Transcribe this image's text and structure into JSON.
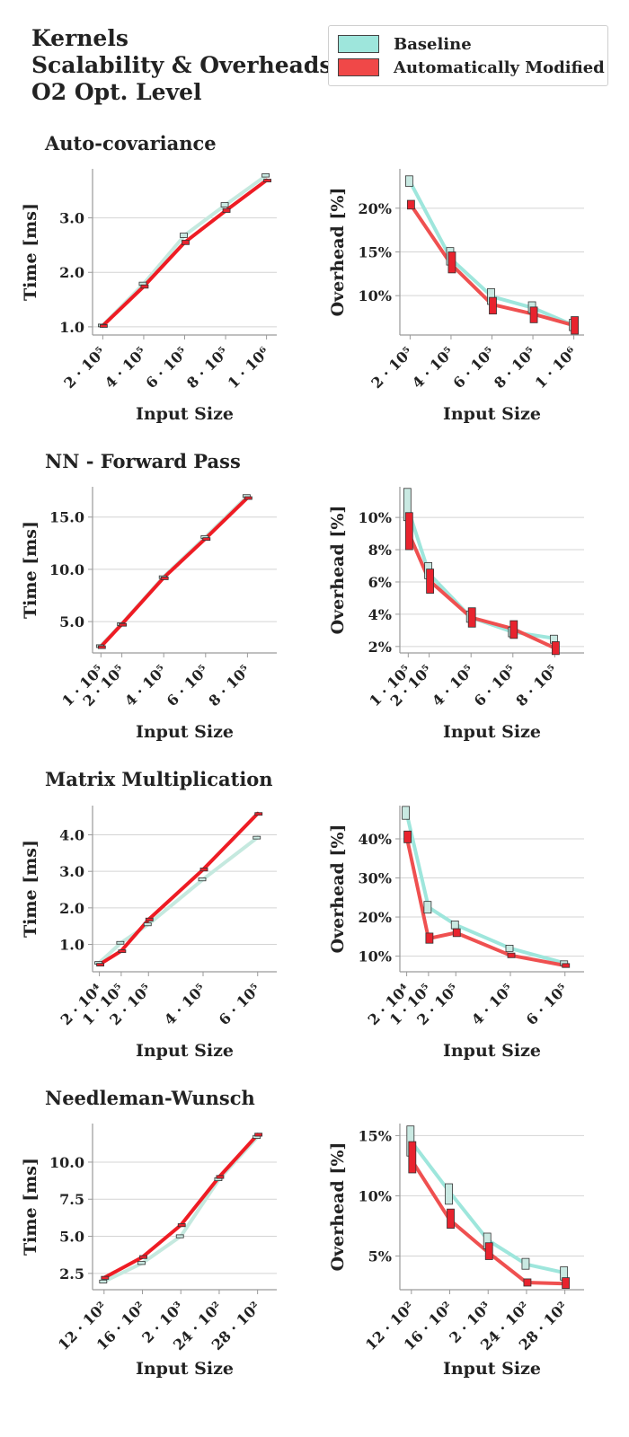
{
  "header": {
    "title": "Kernels\nScalability & Overheads,\nO2 Opt. Level"
  },
  "legend": {
    "placement": "top-right",
    "items": [
      {
        "label": "Baseline",
        "color": "#9ee6dc"
      },
      {
        "label": "Automatically Modified",
        "color": "#f04848"
      }
    ]
  },
  "colors": {
    "baseline_line": "#9ee6dc",
    "baseline_box": "#c9e9e2",
    "modified_line": "#ef5050",
    "modified_box": "#e8232e",
    "modified_time_line": "#ee1c24",
    "time_baseline_line": "#c5e9df",
    "grid": "#d4d4d4",
    "axis": "#9a9a9a"
  },
  "panels": [
    {
      "title": "Auto-covariance"
    },
    {
      "title": "NN - Forward Pass"
    },
    {
      "title": "Matrix Multiplication"
    },
    {
      "title": "Needleman-Wunsch"
    }
  ],
  "chart_data": [
    {
      "type": "line",
      "panel": 0,
      "side": "time",
      "xlabel": "Input Size",
      "ylabel": "Time [ms]",
      "xlim": [
        150000,
        1050000
      ],
      "ylim": [
        0.85,
        3.9
      ],
      "grid": true,
      "xticks": [
        {
          "v": 200000,
          "label": "2 · 10⁵"
        },
        {
          "v": 400000,
          "label": "4 · 10⁵"
        },
        {
          "v": 600000,
          "label": "6 · 10⁵"
        },
        {
          "v": 800000,
          "label": "8 · 10⁵"
        },
        {
          "v": 1000000,
          "label": "1 · 10⁶"
        }
      ],
      "yticks": [
        {
          "v": 1.0,
          "label": "1.0"
        },
        {
          "v": 2.0,
          "label": "2.0"
        },
        {
          "v": 3.0,
          "label": "3.0"
        }
      ],
      "x": [
        200000,
        400000,
        600000,
        800000,
        1000000
      ],
      "series": [
        {
          "name": "Baseline",
          "values": [
            1.03,
            1.79,
            2.68,
            3.24,
            3.78
          ],
          "box": [
            [
              1.01,
              1.05
            ],
            [
              1.76,
              1.82
            ],
            [
              2.64,
              2.72
            ],
            [
              3.2,
              3.28
            ],
            [
              3.75,
              3.81
            ]
          ]
        },
        {
          "name": "Automatically Modified",
          "values": [
            1.02,
            1.74,
            2.55,
            3.13,
            3.69
          ],
          "box": [
            [
              1.0,
              1.04
            ],
            [
              1.71,
              1.77
            ],
            [
              2.51,
              2.59
            ],
            [
              3.1,
              3.17
            ],
            [
              3.67,
              3.71
            ]
          ]
        }
      ]
    },
    {
      "type": "line",
      "panel": 0,
      "side": "overhead",
      "xlabel": "Input Size",
      "ylabel": "Overhead [%]",
      "xlim": [
        150000,
        1050000
      ],
      "ylim": [
        5.5,
        24.5
      ],
      "grid": true,
      "xticks": [
        {
          "v": 200000,
          "label": "2 · 10⁵"
        },
        {
          "v": 400000,
          "label": "4 · 10⁵"
        },
        {
          "v": 600000,
          "label": "6 · 10⁵"
        },
        {
          "v": 800000,
          "label": "8 · 10⁵"
        },
        {
          "v": 1000000,
          "label": "1 · 10⁶"
        }
      ],
      "yticks": [
        {
          "v": 10,
          "label": "10%"
        },
        {
          "v": 15,
          "label": "15%"
        },
        {
          "v": 20,
          "label": "20%"
        }
      ],
      "x": [
        200000,
        400000,
        600000,
        800000,
        1000000
      ],
      "series": [
        {
          "name": "Baseline",
          "values": [
            23.0,
            14.2,
            9.9,
            8.6,
            6.6
          ],
          "box": [
            [
              22.5,
              23.7
            ],
            [
              13.5,
              15.5
            ],
            [
              9.0,
              10.8
            ],
            [
              8.0,
              9.3
            ],
            [
              6.0,
              7.3
            ]
          ]
        },
        {
          "name": "Automatically Modified",
          "values": [
            20.5,
            13.6,
            9.0,
            7.9,
            6.6
          ],
          "box": [
            [
              19.9,
              20.9
            ],
            [
              12.6,
              15.0
            ],
            [
              7.9,
              9.8
            ],
            [
              6.9,
              8.7
            ],
            [
              5.6,
              7.6
            ]
          ]
        }
      ]
    },
    {
      "type": "line",
      "panel": 1,
      "side": "time",
      "xlabel": "Input Size",
      "ylabel": "Time [ms]",
      "xlim": [
        60000,
        940000
      ],
      "ylim": [
        2.0,
        17.9
      ],
      "grid": true,
      "xticks": [
        {
          "v": 100000,
          "label": "1 · 10⁵"
        },
        {
          "v": 200000,
          "label": "2 · 10⁵"
        },
        {
          "v": 400000,
          "label": "4 · 10⁵"
        },
        {
          "v": 600000,
          "label": "6 · 10⁵"
        },
        {
          "v": 800000,
          "label": "8 · 10⁵"
        }
      ],
      "yticks": [
        {
          "v": 5.0,
          "label": "5.0"
        },
        {
          "v": 10.0,
          "label": "10.0"
        },
        {
          "v": 15.0,
          "label": "15.0"
        }
      ],
      "x": [
        100000,
        200000,
        400000,
        600000,
        800000
      ],
      "series": [
        {
          "name": "Baseline",
          "values": [
            2.7,
            4.8,
            9.3,
            13.1,
            17.0
          ],
          "box": [
            [
              2.62,
              2.78
            ],
            [
              4.72,
              4.88
            ],
            [
              9.22,
              9.38
            ],
            [
              13.0,
              13.22
            ],
            [
              16.9,
              17.15
            ]
          ]
        },
        {
          "name": "Automatically Modified",
          "values": [
            2.6,
            4.75,
            9.2,
            12.95,
            16.85
          ],
          "box": [
            [
              2.55,
              2.68
            ],
            [
              4.68,
              4.82
            ],
            [
              9.13,
              9.27
            ],
            [
              12.88,
              13.03
            ],
            [
              16.75,
              16.95
            ]
          ]
        }
      ]
    },
    {
      "type": "line",
      "panel": 1,
      "side": "overhead",
      "xlabel": "Input Size",
      "ylabel": "Overhead [%]",
      "xlim": [
        60000,
        940000
      ],
      "ylim": [
        1.6,
        11.9
      ],
      "grid": true,
      "xticks": [
        {
          "v": 100000,
          "label": "1 · 10⁵"
        },
        {
          "v": 200000,
          "label": "2 · 10⁵"
        },
        {
          "v": 400000,
          "label": "4 · 10⁵"
        },
        {
          "v": 600000,
          "label": "6 · 10⁵"
        },
        {
          "v": 800000,
          "label": "8 · 10⁵"
        }
      ],
      "yticks": [
        {
          "v": 2,
          "label": "2%"
        },
        {
          "v": 4,
          "label": "4%"
        },
        {
          "v": 6,
          "label": "6%"
        },
        {
          "v": 8,
          "label": "8%"
        },
        {
          "v": 10,
          "label": "10%"
        }
      ],
      "x": [
        100000,
        200000,
        400000,
        600000,
        800000
      ],
      "series": [
        {
          "name": "Baseline",
          "values": [
            10.5,
            6.5,
            3.8,
            2.9,
            2.5
          ],
          "box": [
            [
              9.8,
              11.8
            ],
            [
              6.2,
              7.2
            ],
            [
              3.5,
              4.2
            ],
            [
              2.6,
              3.2
            ],
            [
              2.2,
              2.7
            ]
          ]
        },
        {
          "name": "Automatically Modified",
          "values": [
            9.1,
            6.1,
            3.8,
            3.1,
            1.9
          ],
          "box": [
            [
              8.0,
              10.3
            ],
            [
              5.3,
              6.8
            ],
            [
              3.2,
              4.4
            ],
            [
              2.5,
              3.6
            ],
            [
              1.5,
              2.3
            ]
          ]
        }
      ]
    },
    {
      "type": "line",
      "panel": 2,
      "side": "time",
      "xlabel": "Input Size",
      "ylabel": "Time [ms]",
      "xlim": [
        -5000,
        670000
      ],
      "ylim": [
        0.25,
        4.8
      ],
      "grid": true,
      "xticks": [
        {
          "v": 20000,
          "label": "2 · 10⁴"
        },
        {
          "v": 100000,
          "label": "1 · 10⁵"
        },
        {
          "v": 200000,
          "label": "2 · 10⁵"
        },
        {
          "v": 400000,
          "label": "4 · 10⁵"
        },
        {
          "v": 600000,
          "label": "6 · 10⁵"
        }
      ],
      "yticks": [
        {
          "v": 1.0,
          "label": "1.0"
        },
        {
          "v": 2.0,
          "label": "2.0"
        },
        {
          "v": 3.0,
          "label": "3.0"
        },
        {
          "v": 4.0,
          "label": "4.0"
        }
      ],
      "x": [
        20000,
        100000,
        200000,
        400000,
        600000
      ],
      "series": [
        {
          "name": "Baseline",
          "values": [
            0.5,
            1.05,
            1.55,
            2.78,
            3.93
          ],
          "box": [
            [
              0.47,
              0.53
            ],
            [
              1.02,
              1.08
            ],
            [
              1.51,
              1.59
            ],
            [
              2.74,
              2.82
            ],
            [
              3.9,
              3.96
            ]
          ]
        },
        {
          "name": "Automatically Modified",
          "values": [
            0.45,
            0.82,
            1.68,
            3.05,
            4.58
          ],
          "box": [
            [
              0.42,
              0.48
            ],
            [
              0.79,
              0.85
            ],
            [
              1.64,
              1.72
            ],
            [
              3.01,
              3.09
            ],
            [
              4.55,
              4.61
            ]
          ]
        }
      ]
    },
    {
      "type": "line",
      "panel": 2,
      "side": "overhead",
      "xlabel": "Input Size",
      "ylabel": "Overhead [%]",
      "xlim": [
        -5000,
        670000
      ],
      "ylim": [
        6,
        48.5
      ],
      "grid": true,
      "xticks": [
        {
          "v": 20000,
          "label": "2 · 10⁴"
        },
        {
          "v": 100000,
          "label": "1 · 10⁵"
        },
        {
          "v": 200000,
          "label": "2 · 10⁵"
        },
        {
          "v": 400000,
          "label": "4 · 10⁵"
        },
        {
          "v": 600000,
          "label": "6 · 10⁵"
        }
      ],
      "yticks": [
        {
          "v": 10,
          "label": "10%"
        },
        {
          "v": 20,
          "label": "20%"
        },
        {
          "v": 30,
          "label": "30%"
        },
        {
          "v": 40,
          "label": "40%"
        }
      ],
      "x": [
        20000,
        100000,
        200000,
        400000,
        600000
      ],
      "series": [
        {
          "name": "Baseline",
          "values": [
            46.5,
            22.5,
            18.0,
            12.0,
            8.2
          ],
          "box": [
            [
              45.0,
              48.3
            ],
            [
              21.0,
              24.0
            ],
            [
              17.0,
              19.0
            ],
            [
              11.2,
              12.8
            ],
            [
              7.6,
              8.8
            ]
          ]
        },
        {
          "name": "Automatically Modified",
          "values": [
            40.5,
            14.5,
            16.0,
            10.2,
            7.6
          ],
          "box": [
            [
              39.0,
              42.0
            ],
            [
              13.3,
              15.9
            ],
            [
              15.0,
              17.0
            ],
            [
              9.6,
              10.8
            ],
            [
              7.1,
              8.1
            ]
          ]
        }
      ]
    },
    {
      "type": "line",
      "panel": 3,
      "side": "time",
      "xlabel": "Input Size",
      "ylabel": "Time [ms]",
      "xlim": [
        1080,
        3000
      ],
      "ylim": [
        1.4,
        12.6
      ],
      "grid": true,
      "xticks": [
        {
          "v": 1200,
          "label": "12 · 10²"
        },
        {
          "v": 1600,
          "label": "16 · 10²"
        },
        {
          "v": 2000,
          "label": "2 · 10³"
        },
        {
          "v": 2400,
          "label": "24 · 10²"
        },
        {
          "v": 2800,
          "label": "28 · 10²"
        }
      ],
      "yticks": [
        {
          "v": 2.5,
          "label": "2.5"
        },
        {
          "v": 5.0,
          "label": "5.0"
        },
        {
          "v": 7.5,
          "label": "7.5"
        },
        {
          "v": 10.0,
          "label": "10.0"
        }
      ],
      "x": [
        1200,
        1600,
        2000,
        2400,
        2800
      ],
      "series": [
        {
          "name": "Baseline",
          "values": [
            1.95,
            3.2,
            5.0,
            8.85,
            11.7
          ],
          "box": [
            [
              1.85,
              2.05
            ],
            [
              3.1,
              3.3
            ],
            [
              4.9,
              5.1
            ],
            [
              8.75,
              8.95
            ],
            [
              11.6,
              11.8
            ]
          ]
        },
        {
          "name": "Automatically Modified",
          "values": [
            2.2,
            3.6,
            5.75,
            9.0,
            11.85
          ],
          "box": [
            [
              2.1,
              2.3
            ],
            [
              3.5,
              3.7
            ],
            [
              5.65,
              5.85
            ],
            [
              8.9,
              9.1
            ],
            [
              11.75,
              11.95
            ]
          ]
        }
      ]
    },
    {
      "type": "line",
      "panel": 3,
      "side": "overhead",
      "xlabel": "Input Size",
      "ylabel": "Overhead [%]",
      "xlim": [
        1080,
        3000
      ],
      "ylim": [
        2.2,
        16.0
      ],
      "grid": true,
      "xticks": [
        {
          "v": 1200,
          "label": "12 · 10²"
        },
        {
          "v": 1600,
          "label": "16 · 10²"
        },
        {
          "v": 2000,
          "label": "2 · 10³"
        },
        {
          "v": 2400,
          "label": "24 · 10²"
        },
        {
          "v": 2800,
          "label": "28 · 10²"
        }
      ],
      "yticks": [
        {
          "v": 5,
          "label": "5%"
        },
        {
          "v": 10,
          "label": "10%"
        },
        {
          "v": 15,
          "label": "15%"
        }
      ],
      "x": [
        1200,
        1600,
        2000,
        2400,
        2800
      ],
      "series": [
        {
          "name": "Baseline",
          "values": [
            14.5,
            10.3,
            6.3,
            4.3,
            3.6
          ],
          "box": [
            [
              13.3,
              15.8
            ],
            [
              9.3,
              11.0
            ],
            [
              5.6,
              6.9
            ],
            [
              3.9,
              4.8
            ],
            [
              3.0,
              4.1
            ]
          ]
        },
        {
          "name": "Automatically Modified",
          "values": [
            13.0,
            8.0,
            5.3,
            2.8,
            2.7
          ],
          "box": [
            [
              11.9,
              14.5
            ],
            [
              7.3,
              8.9
            ],
            [
              4.7,
              6.1
            ],
            [
              2.5,
              3.1
            ],
            [
              2.3,
              3.2
            ]
          ]
        }
      ]
    }
  ]
}
